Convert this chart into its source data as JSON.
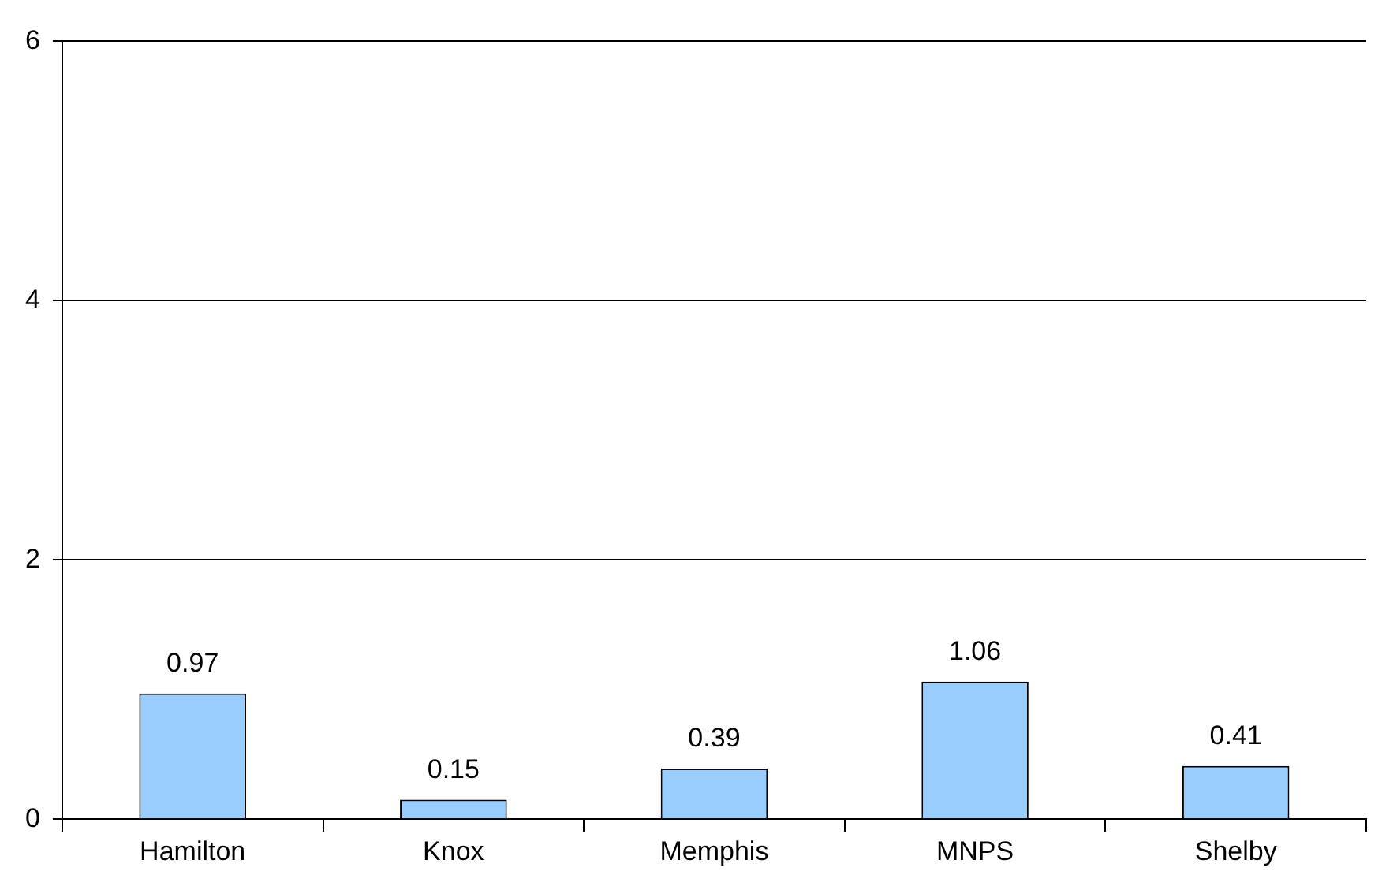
{
  "chart_data": {
    "type": "bar",
    "categories": [
      "Hamilton",
      "Knox",
      "Memphis",
      "MNPS",
      "Shelby"
    ],
    "values": [
      0.97,
      0.15,
      0.39,
      1.06,
      0.41
    ],
    "color": "#99ccff",
    "ylim": [
      0,
      6
    ],
    "yticks": [
      0,
      2,
      4,
      6
    ],
    "grid": "y",
    "legend": false,
    "data_labels": true
  }
}
